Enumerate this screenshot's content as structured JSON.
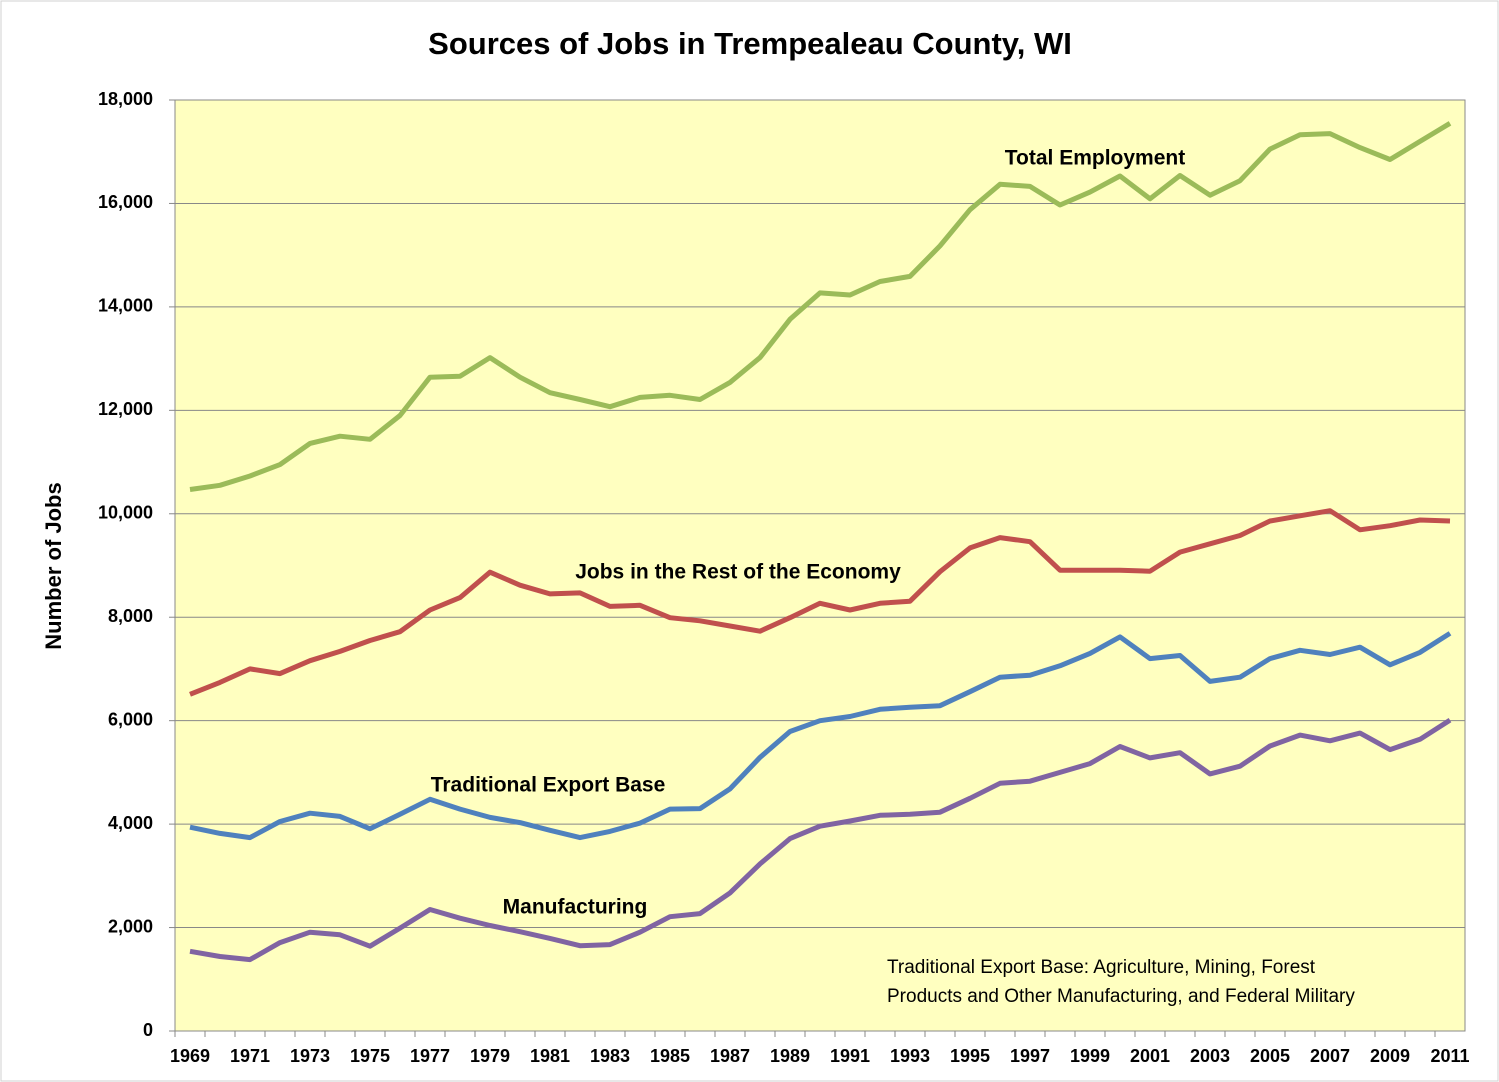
{
  "chart_data": {
    "type": "line",
    "title": "Sources of Jobs in Trempealeau County, WI",
    "ylabel": "Number of Jobs",
    "annotation": [
      "Traditional Export Base: Agriculture, Mining, Forest",
      "Products and Other Manufacturing, and Federal Military"
    ],
    "categories": [
      "1969",
      null,
      "1971",
      null,
      "1973",
      null,
      "1975",
      null,
      "1977",
      null,
      "1979",
      null,
      "1981",
      null,
      "1983",
      null,
      "1985",
      null,
      "1987",
      null,
      "1989",
      null,
      "1991",
      null,
      "1993",
      null,
      "1995",
      null,
      "1997",
      null,
      "1999",
      null,
      "2001",
      null,
      "2003",
      null,
      "2005",
      null,
      "2007",
      null,
      "2009",
      null,
      "2011"
    ],
    "ylim": [
      0,
      18000
    ],
    "yticks": [
      0,
      {
        "value": 2000,
        "label": "2,000"
      },
      {
        "value": 4000,
        "label": "4,000"
      },
      {
        "value": 6000,
        "label": "6,000"
      },
      {
        "value": 8000,
        "label": "8,000"
      },
      {
        "value": 10000,
        "label": "10,000"
      },
      {
        "value": 12000,
        "label": "12,000"
      },
      {
        "value": 14000,
        "label": "14,000"
      },
      {
        "value": 16000,
        "label": "16,000"
      },
      {
        "value": 18000,
        "label": "18,000"
      }
    ],
    "grid": true,
    "series": [
      {
        "name": "Total Employment",
        "color": "#9bbb59",
        "values": [
          10470,
          10550,
          10730,
          10950,
          11360,
          11500,
          11440,
          11900,
          12640,
          12660,
          13020,
          12640,
          12340,
          12210,
          12070,
          12250,
          12290,
          12210,
          12540,
          13020,
          13760,
          14270,
          14230,
          14490,
          14590,
          15180,
          15880,
          16370,
          16330,
          15970,
          16220,
          16530,
          16090,
          16540,
          16160,
          16440,
          17050,
          17330,
          17350,
          17080,
          16850,
          17200,
          17550
        ]
      },
      {
        "name": "Jobs in the Rest of the Economy",
        "color": "#c0504d",
        "values": [
          6510,
          6740,
          7000,
          6910,
          7160,
          7340,
          7550,
          7720,
          8140,
          8380,
          8870,
          8620,
          8450,
          8470,
          8210,
          8230,
          7990,
          7930,
          7830,
          7730,
          7990,
          8270,
          8140,
          8270,
          8310,
          8880,
          9340,
          9540,
          9460,
          8910,
          8910,
          8910,
          8890,
          9260,
          9420,
          9580,
          9860,
          9960,
          10060,
          9690,
          9770,
          9880,
          9860
        ]
      },
      {
        "name": "Traditional Export Base",
        "color": "#4f81bd",
        "values": [
          3940,
          3820,
          3740,
          4050,
          4210,
          4150,
          3910,
          4190,
          4480,
          4290,
          4130,
          4030,
          3880,
          3740,
          3860,
          4020,
          4290,
          4300,
          4680,
          5290,
          5790,
          6000,
          6080,
          6220,
          6260,
          6290,
          6560,
          6840,
          6880,
          7060,
          7300,
          7620,
          7200,
          7260,
          6760,
          6840,
          7200,
          7360,
          7280,
          7420,
          7080,
          7320,
          7690
        ]
      },
      {
        "name": "Manufacturing",
        "color": "#8064a2",
        "values": [
          1540,
          1440,
          1380,
          1710,
          1910,
          1860,
          1640,
          1990,
          2350,
          2180,
          2040,
          1920,
          1790,
          1650,
          1670,
          1910,
          2210,
          2270,
          2670,
          3230,
          3720,
          3960,
          4060,
          4170,
          4190,
          4230,
          4500,
          4790,
          4830,
          5000,
          5170,
          5500,
          5280,
          5380,
          4970,
          5120,
          5510,
          5720,
          5610,
          5760,
          5440,
          5640,
          6010
        ]
      }
    ]
  }
}
